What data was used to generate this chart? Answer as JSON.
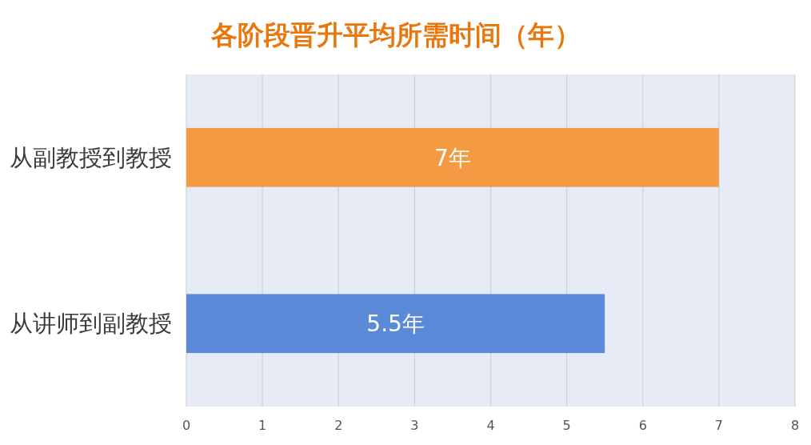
{
  "chart_data": {
    "type": "bar",
    "orientation": "horizontal",
    "title": "各阶段晋升平均所需时间（年）",
    "categories": [
      "从副教授到教授",
      "从讲师到副教授"
    ],
    "values": [
      7,
      5.5
    ],
    "colors": [
      "#f39a42",
      "#5b8bd8"
    ],
    "value_labels": [
      "7年",
      "5.5年"
    ],
    "xlim": [
      0,
      8
    ],
    "xticks": [
      0,
      1,
      2,
      3,
      4,
      5,
      6,
      7,
      8
    ],
    "grid": "x"
  }
}
